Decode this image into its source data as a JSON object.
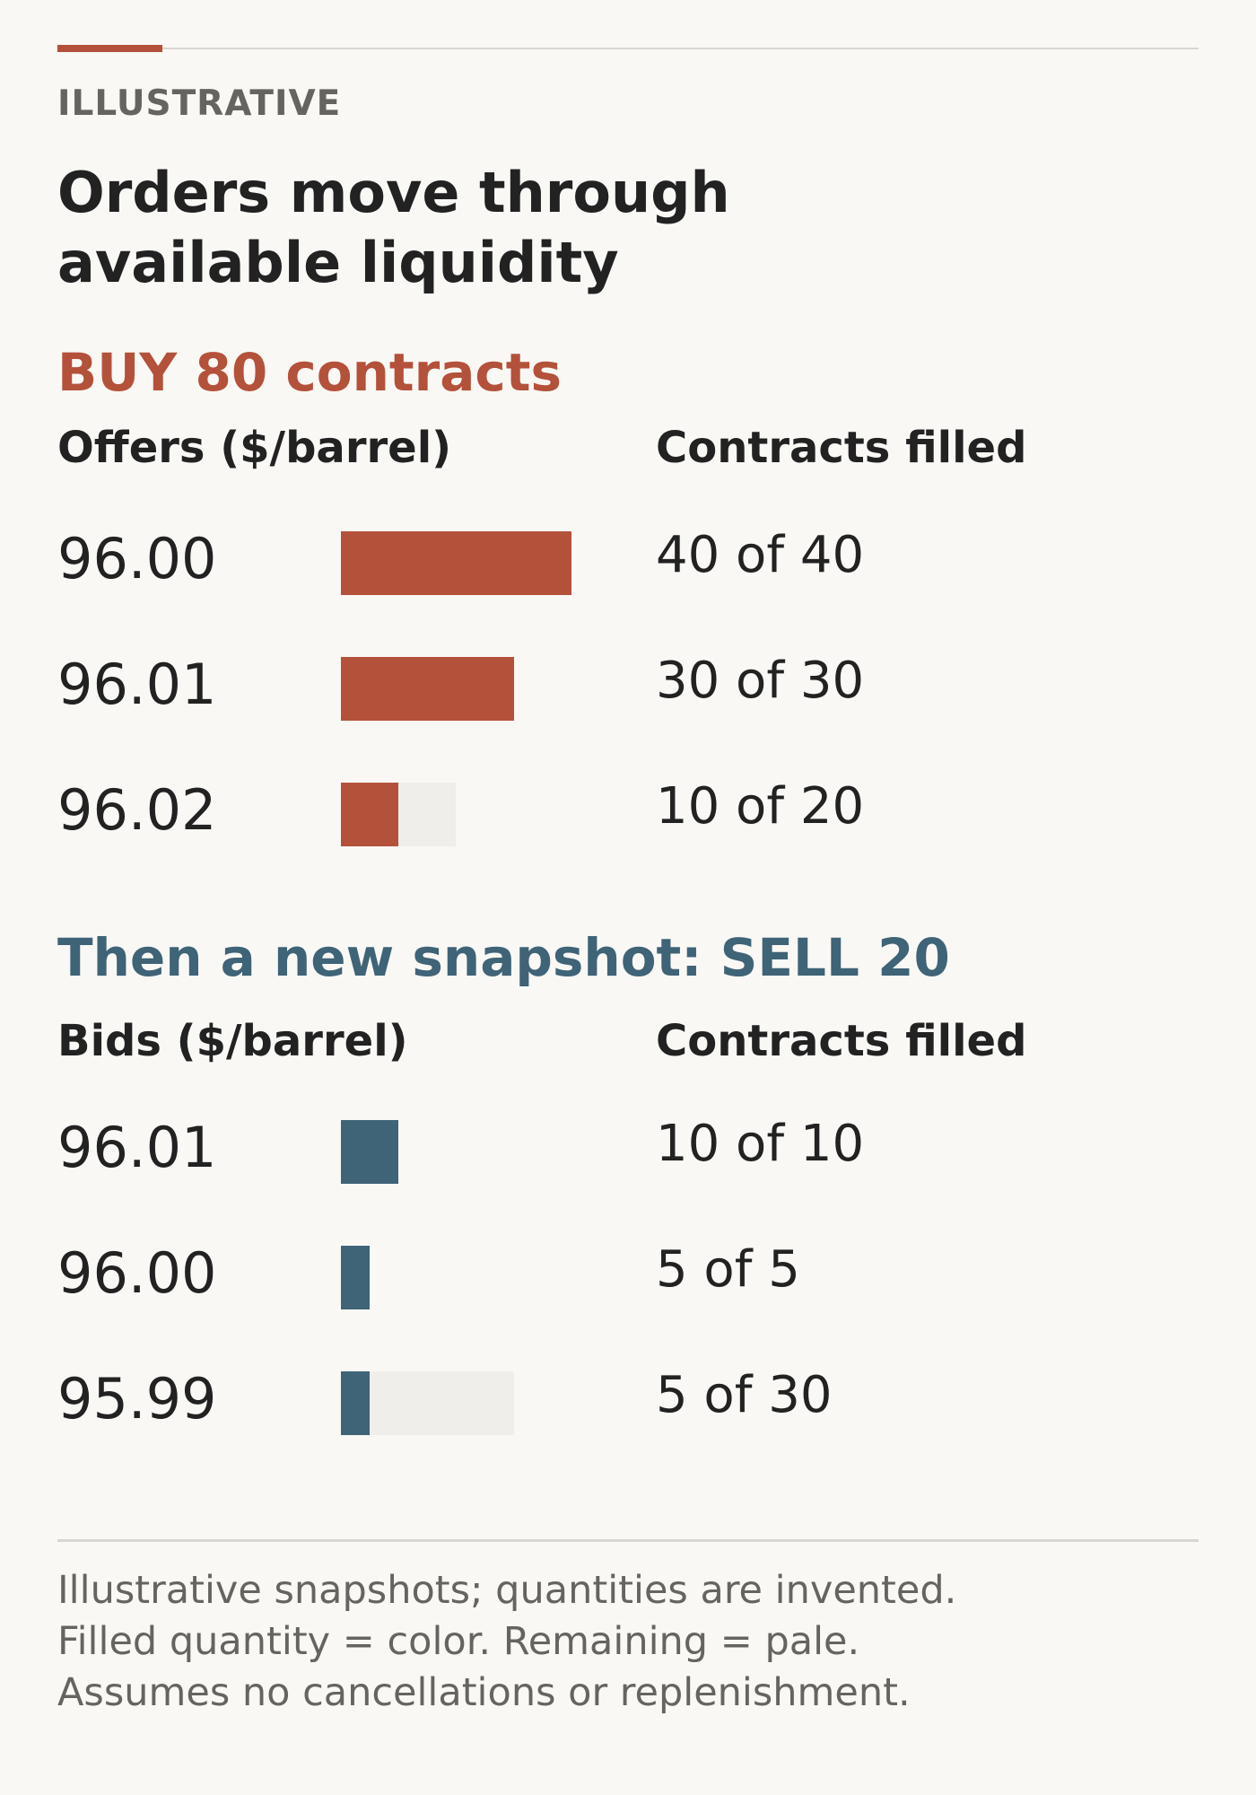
{
  "colors": {
    "buy": "#b4513a",
    "sell": "#3f6377",
    "remaining": "#efeeea",
    "rule": "#d8d6d0"
  },
  "kicker": "ILLUSTRATIVE",
  "title": "Orders move through available liquidity",
  "chart_data": [
    {
      "type": "bar",
      "title": "BUY 80 contracts",
      "category_label": "Offers ($/barrel)",
      "value_label": "Contracts filled",
      "rows": [
        {
          "price": "96.00",
          "filled": 40,
          "available": 40,
          "text": "40 of 40"
        },
        {
          "price": "96.01",
          "filled": 30,
          "available": 30,
          "text": "30 of 30"
        },
        {
          "price": "96.02",
          "filled": 10,
          "available": 20,
          "text": "10 of 20"
        }
      ]
    },
    {
      "type": "bar",
      "title": "Then a new snapshot: SELL 20",
      "category_label": "Bids ($/barrel)",
      "value_label": "Contracts filled",
      "rows": [
        {
          "price": "96.01",
          "filled": 10,
          "available": 10,
          "text": "10 of 10"
        },
        {
          "price": "96.00",
          "filled": 5,
          "available": 5,
          "text": "5 of 5"
        },
        {
          "price": "95.99",
          "filled": 5,
          "available": 30,
          "text": "5 of 30"
        }
      ]
    }
  ],
  "footnotes": [
    "Illustrative snapshots; quantities are invented.",
    "Filled quantity = color. Remaining = pale.",
    "Assumes no cancellations or replenishment."
  ]
}
